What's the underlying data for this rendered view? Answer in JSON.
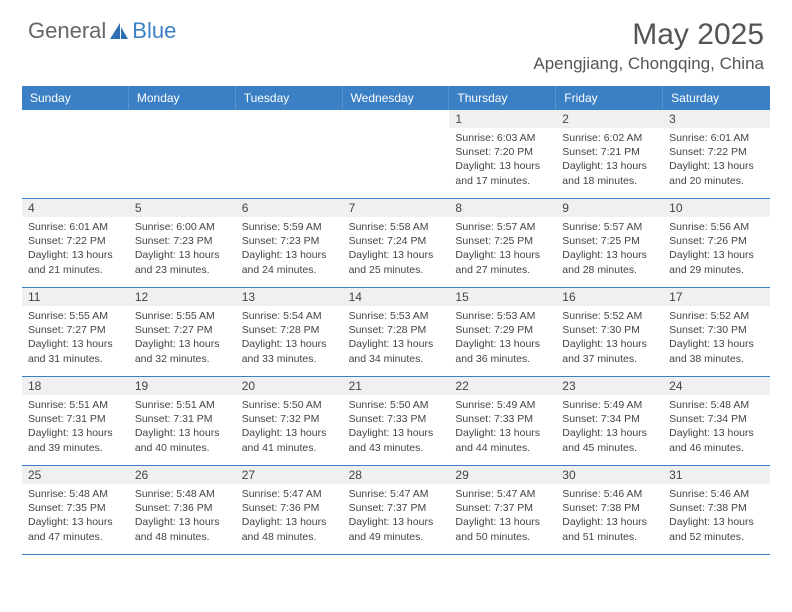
{
  "brand": {
    "part1": "General",
    "part2": "Blue"
  },
  "title": "May 2025",
  "location": "Apengjiang, Chongqing, China",
  "colors": {
    "header_bg": "#3b7fc4",
    "header_text": "#ffffff",
    "daynum_bg": "#eff0f1",
    "text": "#444444",
    "border": "#3b7fc4"
  },
  "day_labels": [
    "Sunday",
    "Monday",
    "Tuesday",
    "Wednesday",
    "Thursday",
    "Friday",
    "Saturday"
  ],
  "weeks": [
    [
      {
        "empty": true
      },
      {
        "empty": true
      },
      {
        "empty": true
      },
      {
        "empty": true
      },
      {
        "n": "1",
        "sunrise": "6:03 AM",
        "sunset": "7:20 PM",
        "day_h": "13",
        "day_m": "17"
      },
      {
        "n": "2",
        "sunrise": "6:02 AM",
        "sunset": "7:21 PM",
        "day_h": "13",
        "day_m": "18"
      },
      {
        "n": "3",
        "sunrise": "6:01 AM",
        "sunset": "7:22 PM",
        "day_h": "13",
        "day_m": "20"
      }
    ],
    [
      {
        "n": "4",
        "sunrise": "6:01 AM",
        "sunset": "7:22 PM",
        "day_h": "13",
        "day_m": "21"
      },
      {
        "n": "5",
        "sunrise": "6:00 AM",
        "sunset": "7:23 PM",
        "day_h": "13",
        "day_m": "23"
      },
      {
        "n": "6",
        "sunrise": "5:59 AM",
        "sunset": "7:23 PM",
        "day_h": "13",
        "day_m": "24"
      },
      {
        "n": "7",
        "sunrise": "5:58 AM",
        "sunset": "7:24 PM",
        "day_h": "13",
        "day_m": "25"
      },
      {
        "n": "8",
        "sunrise": "5:57 AM",
        "sunset": "7:25 PM",
        "day_h": "13",
        "day_m": "27"
      },
      {
        "n": "9",
        "sunrise": "5:57 AM",
        "sunset": "7:25 PM",
        "day_h": "13",
        "day_m": "28"
      },
      {
        "n": "10",
        "sunrise": "5:56 AM",
        "sunset": "7:26 PM",
        "day_h": "13",
        "day_m": "29"
      }
    ],
    [
      {
        "n": "11",
        "sunrise": "5:55 AM",
        "sunset": "7:27 PM",
        "day_h": "13",
        "day_m": "31"
      },
      {
        "n": "12",
        "sunrise": "5:55 AM",
        "sunset": "7:27 PM",
        "day_h": "13",
        "day_m": "32"
      },
      {
        "n": "13",
        "sunrise": "5:54 AM",
        "sunset": "7:28 PM",
        "day_h": "13",
        "day_m": "33"
      },
      {
        "n": "14",
        "sunrise": "5:53 AM",
        "sunset": "7:28 PM",
        "day_h": "13",
        "day_m": "34"
      },
      {
        "n": "15",
        "sunrise": "5:53 AM",
        "sunset": "7:29 PM",
        "day_h": "13",
        "day_m": "36"
      },
      {
        "n": "16",
        "sunrise": "5:52 AM",
        "sunset": "7:30 PM",
        "day_h": "13",
        "day_m": "37"
      },
      {
        "n": "17",
        "sunrise": "5:52 AM",
        "sunset": "7:30 PM",
        "day_h": "13",
        "day_m": "38"
      }
    ],
    [
      {
        "n": "18",
        "sunrise": "5:51 AM",
        "sunset": "7:31 PM",
        "day_h": "13",
        "day_m": "39"
      },
      {
        "n": "19",
        "sunrise": "5:51 AM",
        "sunset": "7:31 PM",
        "day_h": "13",
        "day_m": "40"
      },
      {
        "n": "20",
        "sunrise": "5:50 AM",
        "sunset": "7:32 PM",
        "day_h": "13",
        "day_m": "41"
      },
      {
        "n": "21",
        "sunrise": "5:50 AM",
        "sunset": "7:33 PM",
        "day_h": "13",
        "day_m": "43"
      },
      {
        "n": "22",
        "sunrise": "5:49 AM",
        "sunset": "7:33 PM",
        "day_h": "13",
        "day_m": "44"
      },
      {
        "n": "23",
        "sunrise": "5:49 AM",
        "sunset": "7:34 PM",
        "day_h": "13",
        "day_m": "45"
      },
      {
        "n": "24",
        "sunrise": "5:48 AM",
        "sunset": "7:34 PM",
        "day_h": "13",
        "day_m": "46"
      }
    ],
    [
      {
        "n": "25",
        "sunrise": "5:48 AM",
        "sunset": "7:35 PM",
        "day_h": "13",
        "day_m": "47"
      },
      {
        "n": "26",
        "sunrise": "5:48 AM",
        "sunset": "7:36 PM",
        "day_h": "13",
        "day_m": "48"
      },
      {
        "n": "27",
        "sunrise": "5:47 AM",
        "sunset": "7:36 PM",
        "day_h": "13",
        "day_m": "48"
      },
      {
        "n": "28",
        "sunrise": "5:47 AM",
        "sunset": "7:37 PM",
        "day_h": "13",
        "day_m": "49"
      },
      {
        "n": "29",
        "sunrise": "5:47 AM",
        "sunset": "7:37 PM",
        "day_h": "13",
        "day_m": "50"
      },
      {
        "n": "30",
        "sunrise": "5:46 AM",
        "sunset": "7:38 PM",
        "day_h": "13",
        "day_m": "51"
      },
      {
        "n": "31",
        "sunrise": "5:46 AM",
        "sunset": "7:38 PM",
        "day_h": "13",
        "day_m": "52"
      }
    ]
  ]
}
